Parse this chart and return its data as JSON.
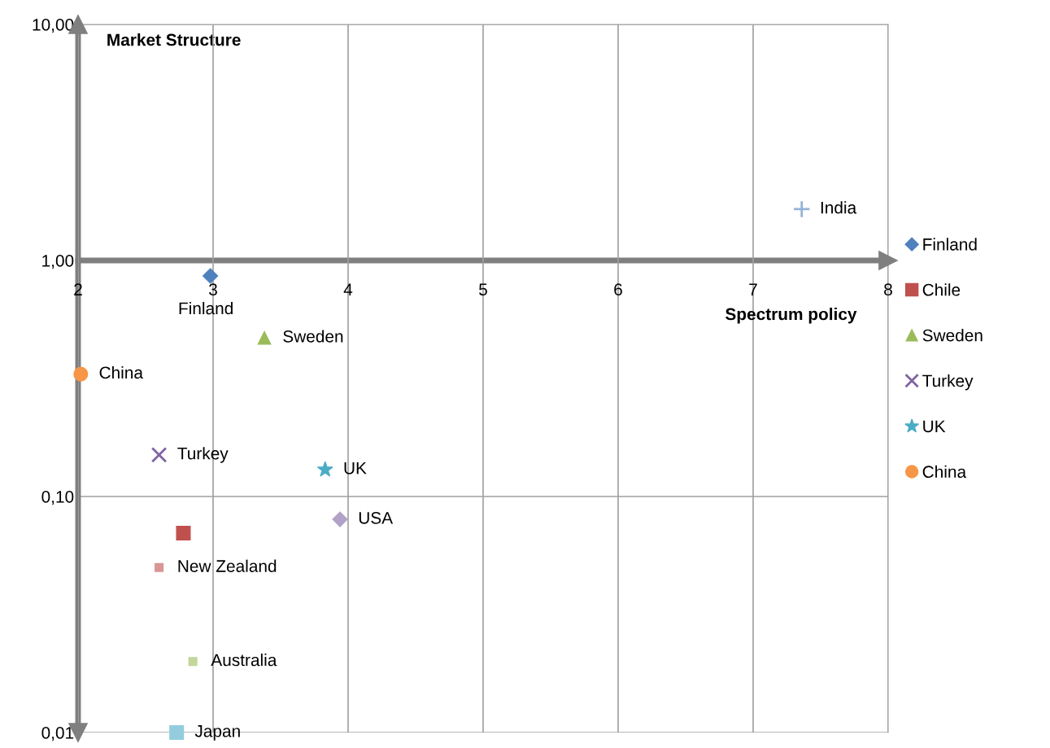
{
  "chart_data": {
    "type": "scatter",
    "xlabel": "Spectrum policy",
    "ylabel": "Market Structure",
    "xlim": [
      2,
      8
    ],
    "ylim": [
      0.01,
      10
    ],
    "log": "y",
    "xticks": [
      2,
      3,
      4,
      5,
      6,
      7,
      8
    ],
    "yticks": [
      {
        "value": 0.01,
        "label": "0,01"
      },
      {
        "value": 0.1,
        "label": "0,10"
      },
      {
        "value": 1,
        "label": "1,00"
      },
      {
        "value": 10,
        "label": "10,00"
      }
    ],
    "grid": true,
    "legend": "right",
    "series": [
      {
        "name": "Finland",
        "color": "#4f81bd",
        "marker": "diamond",
        "x": [
          2.98
        ],
        "values": [
          0.86
        ]
      },
      {
        "name": "Chile",
        "color": "#c0504d",
        "marker": "square",
        "x": [
          2.78
        ],
        "values": [
          0.07
        ]
      },
      {
        "name": "Sweden",
        "color": "#9bbb59",
        "marker": "triangle",
        "x": [
          3.38
        ],
        "values": [
          0.47
        ]
      },
      {
        "name": "Turkey",
        "color": "#8064a2",
        "marker": "cross",
        "x": [
          2.6
        ],
        "values": [
          0.15
        ]
      },
      {
        "name": "UK",
        "color": "#4bacc6",
        "marker": "star",
        "x": [
          3.83
        ],
        "values": [
          0.13
        ]
      },
      {
        "name": "China",
        "color": "#f79646",
        "marker": "circle",
        "x": [
          2.02
        ],
        "values": [
          0.33
        ]
      },
      {
        "name": "India",
        "color": "#95b3d7",
        "marker": "cross",
        "x": [
          7.36
        ],
        "values": [
          1.65
        ]
      },
      {
        "name": "USA",
        "color": "#b3a2c7",
        "marker": "diamond",
        "x": [
          3.94
        ],
        "values": [
          0.08
        ]
      },
      {
        "name": "New Zealand",
        "color": "#d99694",
        "marker": "square",
        "x": [
          2.6
        ],
        "values": [
          0.05
        ]
      },
      {
        "name": "Australia",
        "color": "#c3d69b",
        "marker": "square",
        "x": [
          2.85
        ],
        "values": [
          0.02
        ]
      },
      {
        "name": "Japan",
        "color": "#93cddd",
        "marker": "square",
        "x": [
          2.73
        ],
        "values": [
          0.01
        ]
      }
    ],
    "annotations": [
      {
        "text": "Finland",
        "x": 2.98,
        "y": 0.86
      },
      {
        "text": "Sweden",
        "x": 3.38,
        "y": 0.47
      },
      {
        "text": "Turkey",
        "x": 2.6,
        "y": 0.15
      },
      {
        "text": "UK",
        "x": 3.83,
        "y": 0.13
      },
      {
        "text": "China",
        "x": 2.02,
        "y": 0.33
      }
    ]
  }
}
